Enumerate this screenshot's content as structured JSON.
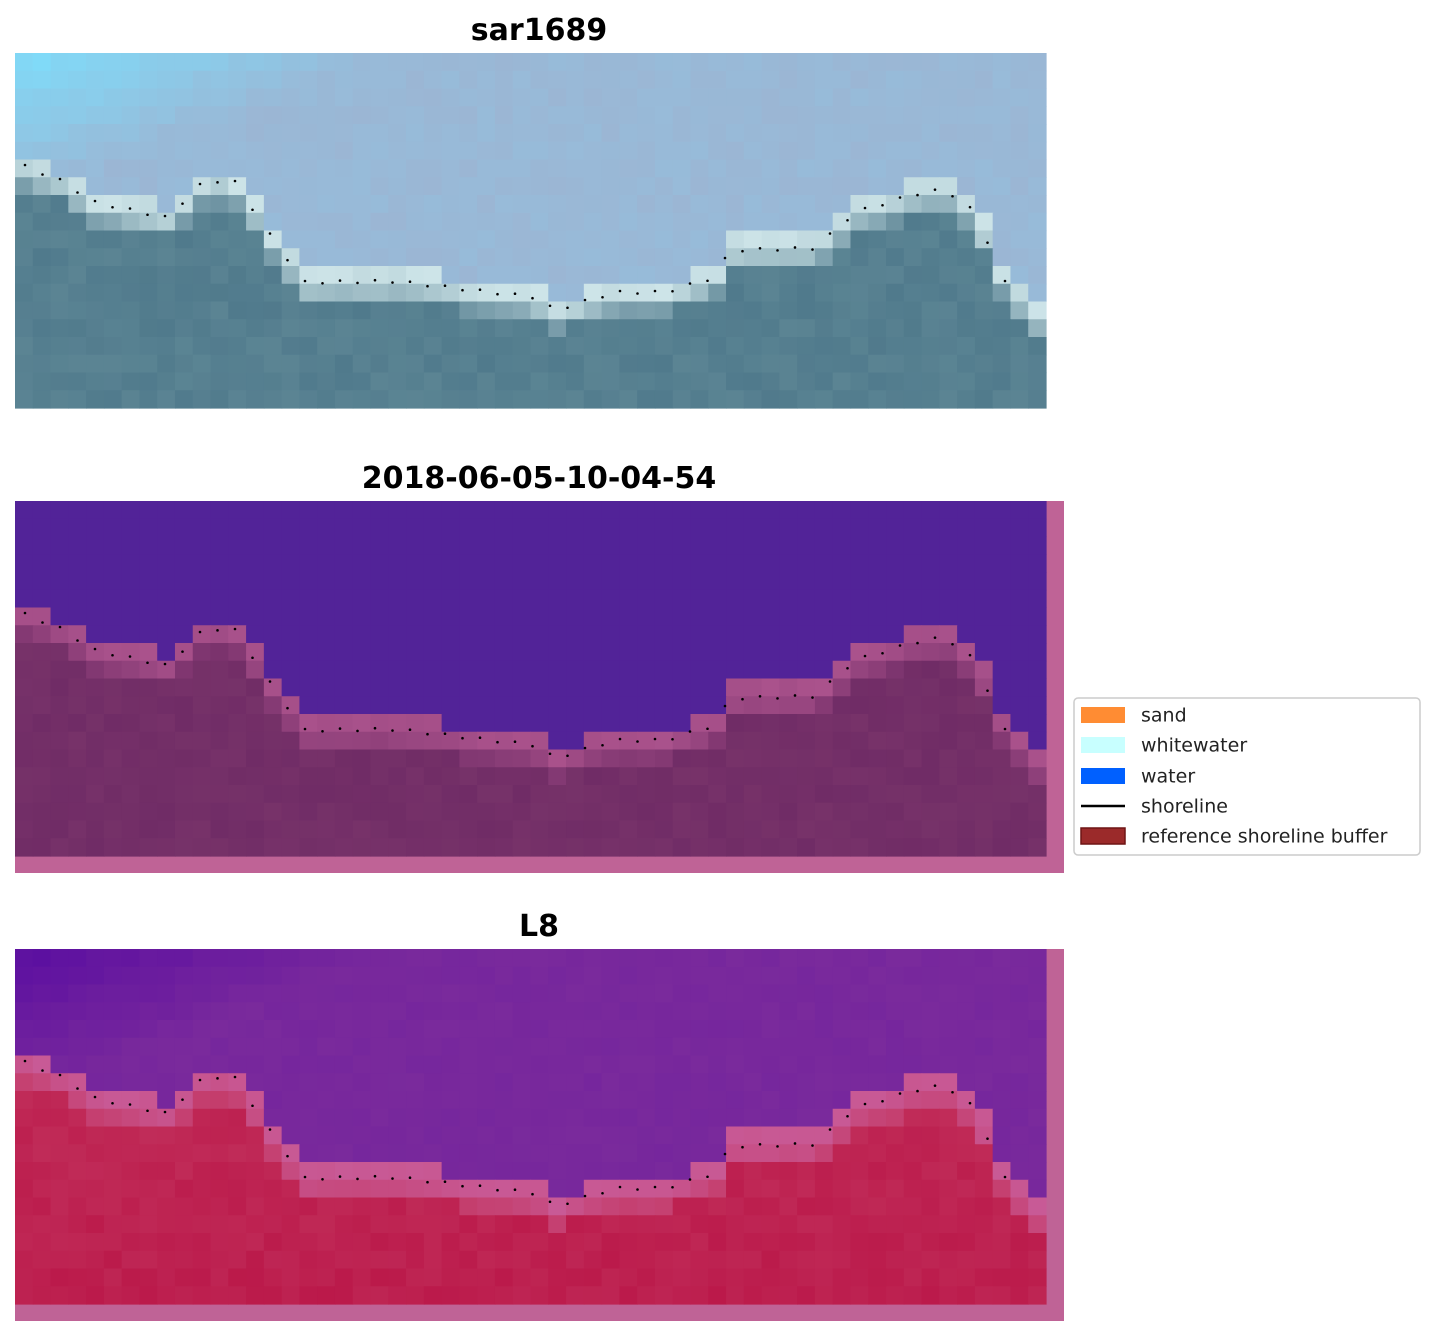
{
  "panels": [
    {
      "title": "sar1689"
    },
    {
      "title": "2018-06-05-10-04-54"
    },
    {
      "title": "L8"
    }
  ],
  "legend": {
    "items": [
      "sand",
      "whitewater",
      "water",
      "shoreline",
      "reference shoreline buffer"
    ]
  }
}
